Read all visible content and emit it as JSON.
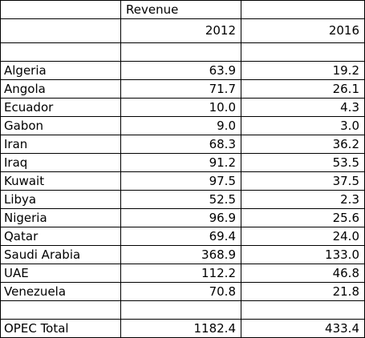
{
  "table": {
    "header_label": "Revenue",
    "years": [
      "2012",
      "2016"
    ],
    "rows": [
      {
        "country": "Algeria",
        "v2012": "63.9",
        "v2016": "19.2"
      },
      {
        "country": "Angola",
        "v2012": "71.7",
        "v2016": "26.1"
      },
      {
        "country": "Ecuador",
        "v2012": "10.0",
        "v2016": "4.3"
      },
      {
        "country": "Gabon",
        "v2012": "9.0",
        "v2016": "3.0"
      },
      {
        "country": "Iran",
        "v2012": "68.3",
        "v2016": "36.2"
      },
      {
        "country": "Iraq",
        "v2012": "91.2",
        "v2016": "53.5"
      },
      {
        "country": "Kuwait",
        "v2012": "97.5",
        "v2016": "37.5"
      },
      {
        "country": "Libya",
        "v2012": "52.5",
        "v2016": "2.3"
      },
      {
        "country": "Nigeria",
        "v2012": "96.9",
        "v2016": "25.6"
      },
      {
        "country": "Qatar",
        "v2012": "69.4",
        "v2016": "24.0"
      },
      {
        "country": "Saudi Arabia",
        "v2012": "368.9",
        "v2016": "133.0"
      },
      {
        "country": "UAE",
        "v2012": "112.2",
        "v2016": "46.8"
      },
      {
        "country": "Venezuela",
        "v2012": "70.8",
        "v2016": "21.8"
      }
    ],
    "total": {
      "country": "OPEC Total",
      "v2012": "1182.4",
      "v2016": "433.4"
    }
  }
}
